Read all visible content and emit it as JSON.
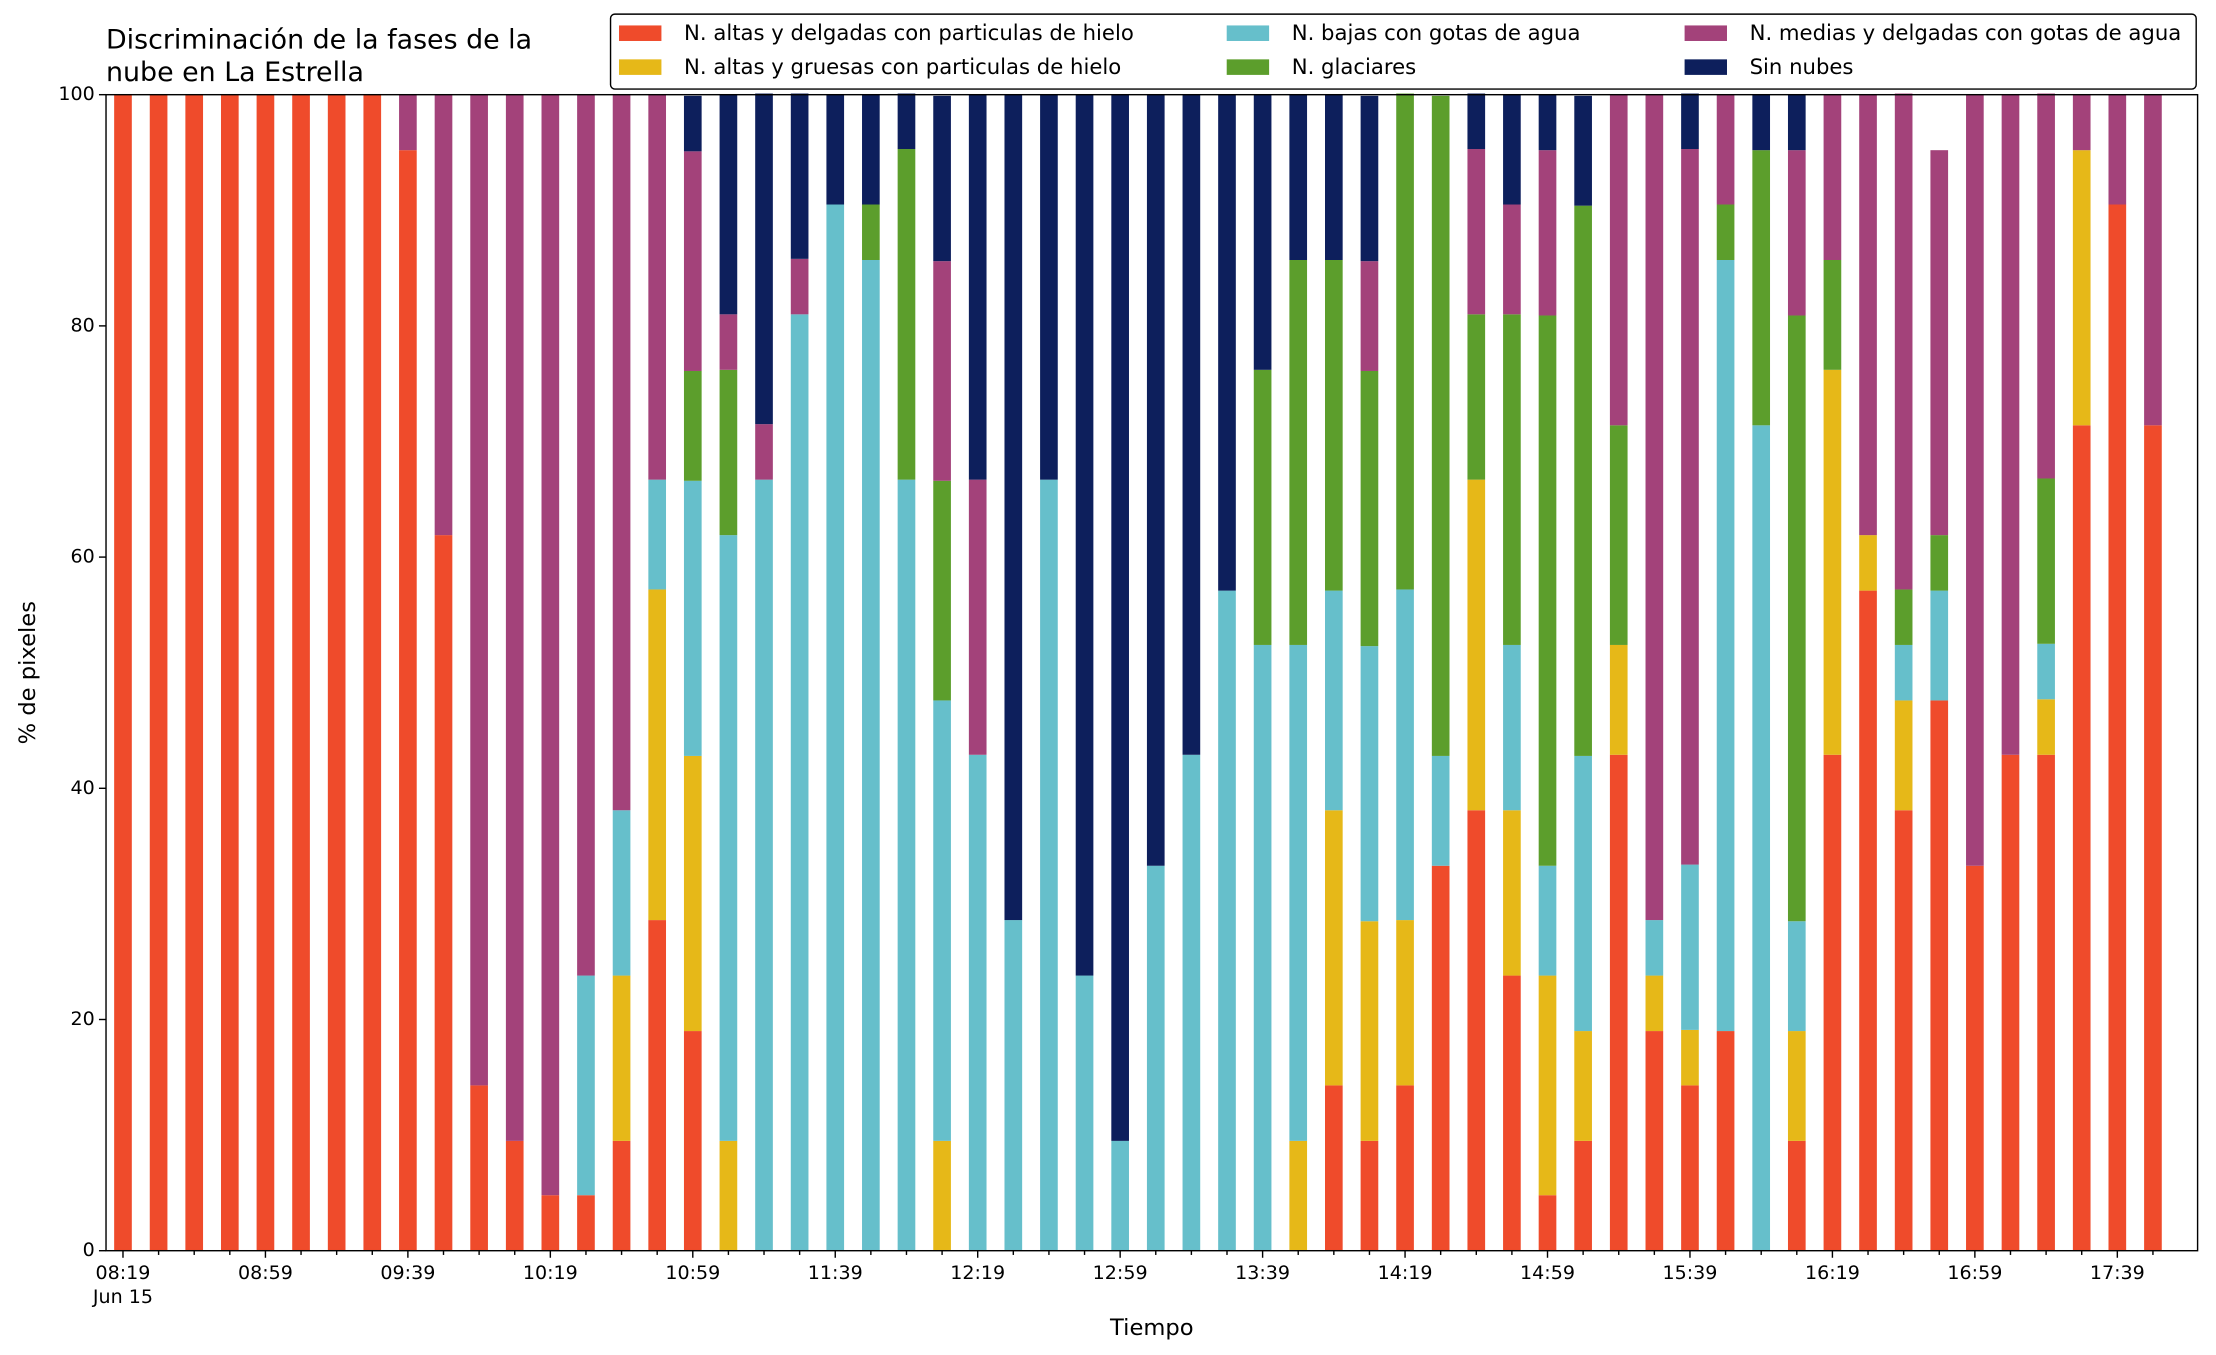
{
  "chart_data": {
    "type": "stacked_bar",
    "title": [
      "Discriminación de la fases de la",
      "nube en La Estrella"
    ],
    "xlabel": "Tiempo",
    "ylabel": "% de pixeles",
    "x_date_label": "Jun 15",
    "categories": [
      "08:19",
      null,
      null,
      null,
      "08:59",
      null,
      null,
      null,
      "09:39",
      null,
      null,
      null,
      "10:19",
      null,
      null,
      null,
      "10:59",
      null,
      null,
      null,
      "11:39",
      null,
      null,
      null,
      "12:19",
      null,
      null,
      null,
      "12:59",
      null,
      null,
      null,
      "13:39",
      null,
      null,
      null,
      "14:19",
      null,
      null,
      null,
      "14:59",
      null,
      null,
      null,
      "15:39",
      null,
      null,
      null,
      "16:19",
      null,
      null,
      null,
      "16:59",
      null,
      null,
      null,
      "17:39",
      null
    ],
    "ylim": [
      0,
      100
    ],
    "yticks": [
      0,
      20,
      40,
      60,
      80,
      100
    ],
    "legend": "top-right",
    "series": [
      {
        "name": "N. altas y delgadas con particulas de hielo",
        "color": "#ef4b2b",
        "values": [
          100,
          100,
          100,
          100,
          100,
          100,
          100,
          100,
          95.2,
          61.9,
          14.3,
          9.5,
          4.8,
          4.8,
          9.5,
          28.6,
          19.0,
          0,
          0,
          0,
          0,
          0,
          0,
          0,
          0,
          0,
          0,
          0,
          0,
          0,
          0,
          0,
          0,
          0,
          14.3,
          9.5,
          14.3,
          33.3,
          38.1,
          23.8,
          4.8,
          9.5,
          42.9,
          19.0,
          14.3,
          19.0,
          0,
          9.5,
          42.9,
          57.1,
          38.1,
          47.6,
          33.3,
          42.9,
          42.9,
          71.4,
          90.5,
          71.4
        ]
      },
      {
        "name": "N. altas y gruesas con particulas de hielo",
        "color": "#e6b818",
        "values": [
          0,
          0,
          0,
          0,
          0,
          0,
          0,
          0,
          0,
          0,
          0,
          0,
          0,
          0,
          14.3,
          28.6,
          23.8,
          9.5,
          0,
          0,
          0,
          0,
          0,
          9.5,
          0,
          0,
          0,
          0,
          0,
          0,
          0,
          0,
          0,
          9.5,
          23.8,
          19.0,
          14.3,
          0,
          28.6,
          14.3,
          19.0,
          9.5,
          9.5,
          4.8,
          4.8,
          0,
          0,
          9.5,
          33.3,
          4.8,
          9.5,
          0,
          0,
          0,
          4.8,
          23.8,
          0,
          0
        ]
      },
      {
        "name": "N. bajas con gotas de agua",
        "color": "#66bfcb",
        "values": [
          0,
          0,
          0,
          0,
          0,
          0,
          0,
          0,
          0,
          0,
          0,
          0,
          0,
          19.0,
          14.3,
          9.5,
          23.8,
          52.4,
          66.7,
          81.0,
          90.5,
          85.7,
          66.7,
          38.1,
          42.9,
          28.6,
          66.7,
          23.8,
          9.5,
          33.3,
          42.9,
          57.1,
          52.4,
          42.9,
          19.0,
          23.8,
          28.6,
          9.5,
          0,
          14.3,
          9.5,
          23.8,
          0,
          4.8,
          14.3,
          66.7,
          71.4,
          9.5,
          0,
          0,
          4.8,
          9.5,
          0,
          0,
          4.8,
          0,
          0,
          0
        ]
      },
      {
        "name": "N. glaciares",
        "color": "#5c9e2c",
        "values": [
          0,
          0,
          0,
          0,
          0,
          0,
          0,
          0,
          0,
          0,
          0,
          0,
          0,
          0,
          0,
          0,
          9.5,
          14.3,
          0,
          0,
          0,
          4.8,
          28.6,
          19.0,
          0,
          0,
          0,
          0,
          0,
          0,
          0,
          0,
          23.8,
          33.3,
          28.6,
          23.8,
          42.9,
          57.1,
          14.3,
          28.6,
          47.6,
          47.6,
          19.0,
          0,
          0,
          4.8,
          23.8,
          52.4,
          9.5,
          0,
          4.8,
          4.8,
          0,
          0,
          14.3,
          0,
          0,
          0
        ]
      },
      {
        "name": "N. medias y delgadas con gotas de agua",
        "color": "#a3427a",
        "values": [
          0,
          0,
          0,
          0,
          0,
          0,
          0,
          0,
          4.8,
          38.1,
          85.7,
          90.5,
          95.2,
          76.2,
          61.9,
          33.3,
          19.0,
          4.8,
          4.8,
          4.8,
          0,
          0,
          0,
          19.0,
          23.8,
          0,
          0,
          0,
          0,
          0,
          0,
          0,
          0,
          0,
          0,
          9.5,
          0,
          0,
          14.3,
          9.5,
          14.3,
          0,
          28.6,
          71.4,
          61.9,
          9.5,
          0,
          14.3,
          14.3,
          38.1,
          42.9,
          33.3,
          66.7,
          57.1,
          33.3,
          4.8,
          9.5,
          28.6
        ]
      },
      {
        "name": "Sin nubes",
        "color": "#0d1f5c",
        "values": [
          0,
          0,
          0,
          0,
          0,
          0,
          0,
          0,
          0,
          0,
          0,
          0,
          0,
          0,
          0,
          0,
          4.8,
          19.0,
          28.6,
          14.3,
          9.5,
          9.5,
          4.8,
          14.3,
          33.3,
          71.4,
          33.3,
          76.2,
          90.5,
          66.7,
          57.1,
          42.9,
          23.8,
          14.3,
          14.3,
          14.3,
          0,
          0,
          4.8,
          9.5,
          4.8,
          9.5,
          0,
          0,
          4.8,
          0,
          4.8,
          4.8,
          0,
          0,
          0,
          0,
          0,
          0,
          0,
          0,
          0,
          0
        ]
      }
    ]
  }
}
